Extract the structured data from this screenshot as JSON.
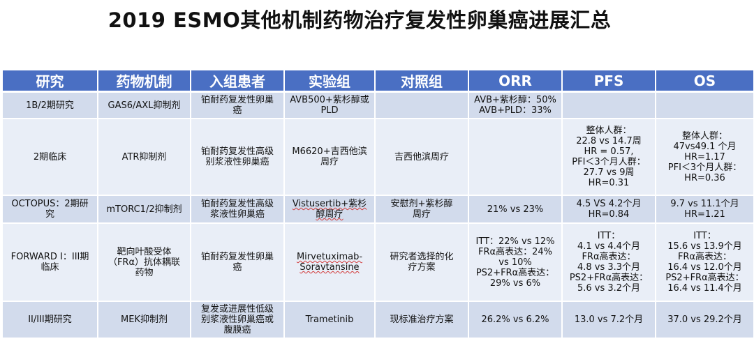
{
  "title": "2019 ESMO其他机制药物治疗复发性卵巢癌进展汇总",
  "table": {
    "headers": [
      "研究",
      "药物机制",
      "入组患者",
      "实验组",
      "对照组",
      "ORR",
      "PFS",
      "OS"
    ],
    "rows": [
      {
        "study": [
          "1B/2期研究"
        ],
        "mechanism": [
          "GAS6/AXL抑制剂"
        ],
        "patients": [
          "铂耐药复发性卵巢",
          "癌"
        ],
        "experimental": [
          "AVB500+紫杉醇或",
          "PLD"
        ],
        "control": [],
        "orr": [
          "AVB+紫杉醇：50%",
          "AVB+PLD：33%"
        ],
        "pfs": [],
        "os": []
      },
      {
        "study": [
          "2期临床"
        ],
        "mechanism": [
          "ATR抑制剂"
        ],
        "patients": [
          "铂耐药复发性高级",
          "别浆液性卵巢癌"
        ],
        "experimental": [
          "M6620+吉西他滨",
          "周疗"
        ],
        "control": [
          "吉西他滨周疗"
        ],
        "orr": [],
        "pfs": [
          "整体人群：",
          "22.8 vs 14.7周",
          "HR = 0.57,",
          "PFI＜3个月人群：",
          "27.7 vs 9周",
          "HR=0.31"
        ],
        "os": [
          "整体人群：",
          "47vs49.1 个月",
          "HR=1.17",
          "PFI＜3个月人群：",
          "HR=0.36"
        ]
      },
      {
        "study": [
          "OCTOPUS：2期研",
          "究"
        ],
        "mechanism": [
          "mTORC1/2抑制剂"
        ],
        "patients": [
          "铂耐药复发性高级",
          "浆液性卵巢癌"
        ],
        "experimental": [
          "Vistusertib+紫杉",
          "醇周疗"
        ],
        "control": [
          "安慰剂+紫杉醇",
          "周疗"
        ],
        "orr": [
          "21% vs 23%"
        ],
        "pfs": [
          "4.5 VS 4.2个月",
          "HR=0.84"
        ],
        "os": [
          "9.7 vs 11.1个月",
          "HR=1.21"
        ]
      },
      {
        "study": [
          "FORWARD I：III期",
          "临床"
        ],
        "mechanism": [
          "靶向叶酸受体",
          "（FRα）抗体耦联",
          "药物"
        ],
        "patients": [
          "铂耐药复发性卵巢",
          "癌"
        ],
        "experimental": [
          "Mirvetuximab-",
          "Soravtansine"
        ],
        "control": [
          "研究者选择的化",
          "疗方案"
        ],
        "orr": [
          "ITT：22% vs 12%",
          "FRα高表达：24%",
          "vs 10%",
          "PS2+FRα高表达：",
          "29% vs 6%"
        ],
        "pfs": [
          "ITT：",
          "4.1 vs 4.4个月",
          "FRα高表达：",
          "4.8 vs 3.3个月",
          "PS2+FRα高表达：",
          "5.6 vs 3.2个月"
        ],
        "os": [
          "ITT：",
          "15.6 vs 13.9个月",
          "FRα高表达：",
          "16.4 vs 12.0个月",
          "PS2+FRα高表达：",
          "16.4 vs 11.4个月"
        ]
      },
      {
        "study": [
          "II/III期研究"
        ],
        "mechanism": [
          "MEK抑制剂"
        ],
        "patients": [
          "复发或进展性低级",
          "别浆液性卵巢癌或",
          "腹膜癌"
        ],
        "experimental": [
          "Trametinib"
        ],
        "control": [
          "现标准治疗方案"
        ],
        "orr": [
          "26.2% vs 6.2%"
        ],
        "pfs": [
          "13.0 vs 7.2个月"
        ],
        "os": [
          "37.0 vs 29.2个月"
        ]
      }
    ]
  },
  "colors": {
    "header_bg": "#4a6fc3",
    "row_odd": "#d2dbec",
    "row_even": "#e9eef7"
  }
}
